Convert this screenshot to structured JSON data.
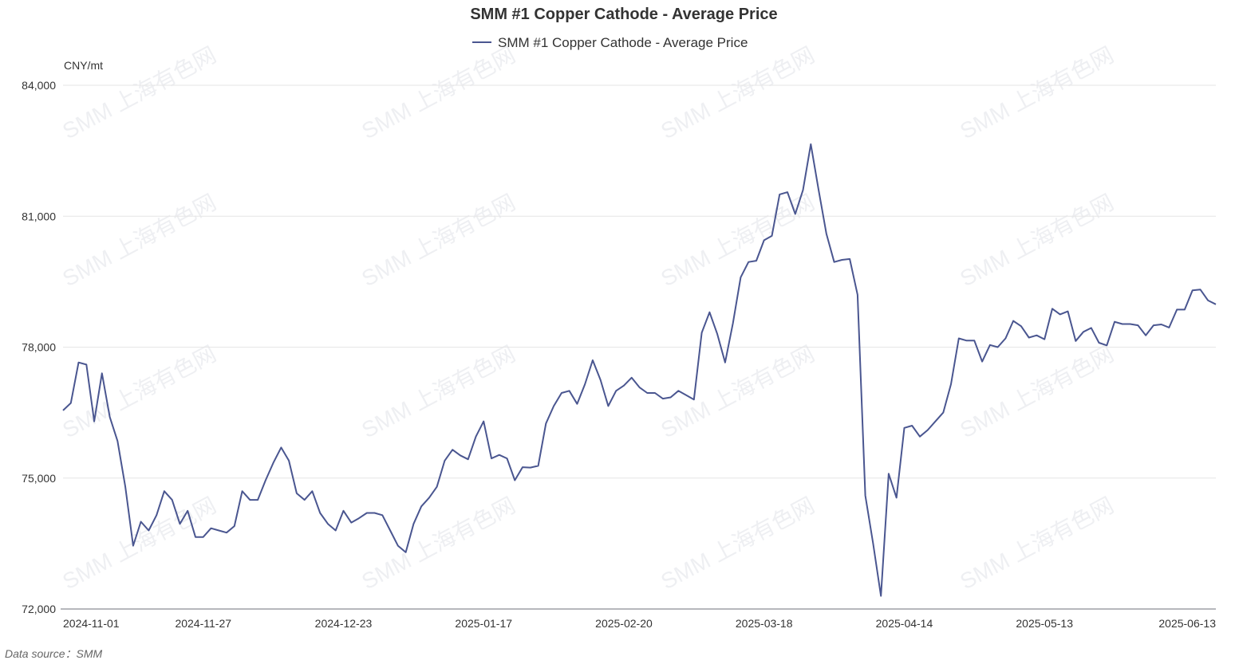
{
  "chart_data": {
    "type": "line",
    "title": "SMM #1 Copper Cathode - Average Price",
    "ylabel": "CNY/mt",
    "xlabel": "",
    "ylim": [
      72000,
      84000
    ],
    "y_ticks": [
      "72,000",
      "75,000",
      "78,000",
      "81,000",
      "84,000"
    ],
    "y_tick_values": [
      72000,
      75000,
      78000,
      81000,
      84000
    ],
    "x_ticks": [
      "2024-11-01",
      "2024-11-27",
      "2024-12-23",
      "2025-01-17",
      "2025-02-20",
      "2025-03-18",
      "2025-04-14",
      "2025-05-13",
      "2025-06-13"
    ],
    "x_tick_index": [
      0,
      18,
      36,
      54,
      72,
      90,
      108,
      126,
      144
    ],
    "legend_position": "top-center",
    "grid": true,
    "color": "#4a5690",
    "data_source_label": "Data source：SMM",
    "watermark_text": "SMM 上海有色网",
    "series": [
      {
        "name": "SMM #1 Copper Cathode - Average Price",
        "values": [
          76550,
          76720,
          77650,
          77600,
          76300,
          77400,
          76400,
          75850,
          74800,
          73450,
          74000,
          73800,
          74150,
          74700,
          74500,
          73950,
          74250,
          73650,
          73650,
          73850,
          73800,
          73750,
          73900,
          74700,
          74500,
          74500,
          74950,
          75350,
          75700,
          75400,
          74650,
          74500,
          74700,
          74200,
          73950,
          73800,
          74250,
          73980,
          74080,
          74200,
          74200,
          74150,
          73800,
          73450,
          73300,
          73950,
          74350,
          74550,
          74800,
          75400,
          75650,
          75520,
          75430,
          75950,
          76300,
          75450,
          75530,
          75450,
          74950,
          75250,
          75240,
          75280,
          76250,
          76650,
          76950,
          77000,
          76700,
          77150,
          77700,
          77250,
          76650,
          77000,
          77120,
          77300,
          77080,
          76950,
          76950,
          76820,
          76850,
          77000,
          76900,
          76800,
          78330,
          78800,
          78300,
          77650,
          78550,
          79600,
          79950,
          79980,
          80450,
          80550,
          81500,
          81550,
          81050,
          81600,
          82650,
          81600,
          80600,
          79950,
          80000,
          80020,
          79200,
          74600,
          73500,
          72300,
          75100,
          74550,
          76150,
          76200,
          75950,
          76100,
          76300,
          76500,
          77150,
          78200,
          78150,
          78150,
          77670,
          78050,
          78000,
          78200,
          78600,
          78480,
          78220,
          78270,
          78180,
          78880,
          78750,
          78820,
          78140,
          78350,
          78440,
          78100,
          78040,
          78580,
          78530,
          78530,
          78500,
          78270,
          78500,
          78520,
          78450,
          78860,
          78860,
          79300,
          79320,
          79070,
          78980
        ]
      }
    ]
  }
}
